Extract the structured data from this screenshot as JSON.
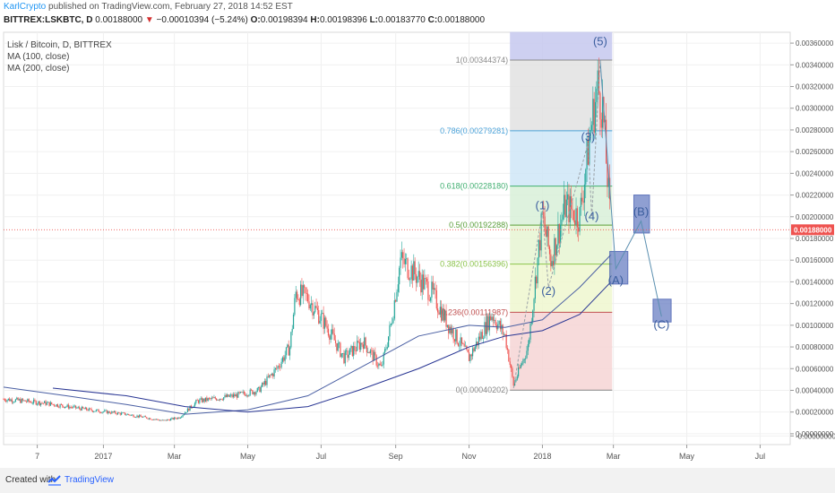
{
  "header": {
    "author": "KarlCrypto",
    "published": " published on TradingView.com, February 27, 2018 14:52 EST",
    "symbol": "BITTREX:LSKBTC, D",
    "last": "0.00188000",
    "arrow": "▼",
    "change": "−0.00010394 (−5.24%)",
    "ohlc_o_label": "O:",
    "ohlc_o": "0.00198394",
    "ohlc_h_label": "H:",
    "ohlc_h": "0.00198396",
    "ohlc_l_label": "L:",
    "ohlc_l": "0.00183770",
    "ohlc_c_label": "C:",
    "ohlc_c": "0.00188000"
  },
  "legend": {
    "title": "Lisk / Bitcoin, D, BITTREX",
    "ma1": "MA (100, close)",
    "ma2": "MA (200, close)"
  },
  "footer": {
    "created": "Created with",
    "brand": "TradingView"
  },
  "colors": {
    "up": "#26a69a",
    "down": "#ef5350",
    "ma100": "#4a5fa3",
    "ma200": "#283593",
    "wave": "#5b8fb0",
    "box_fill": "#6a7fc4",
    "price_tag": "#ef5350"
  },
  "chart_data": {
    "type": "candlestick",
    "title": "Lisk / Bitcoin, D, BITTREX",
    "y_ticks": [
      "0.00360000",
      "0.00340000",
      "0.00320000",
      "0.00300000",
      "0.00280000",
      "0.00260000",
      "0.00240000",
      "0.00220000",
      "0.00200000",
      "0.00180000",
      "0.00160000",
      "0.00140000",
      "0.00120000",
      "0.00100000",
      "0.00080000",
      "0.00060000",
      "0.00040000",
      "0.00020000",
      "0.00000000",
      "-0.00000000"
    ],
    "y_tick_values": [
      0.0036,
      0.0034,
      0.0032,
      0.003,
      0.0028,
      0.0026,
      0.0024,
      0.0022,
      0.002,
      0.0018,
      0.0016,
      0.0014,
      0.0012,
      0.001,
      0.0008,
      0.0006,
      0.0004,
      0.0002,
      0.0,
      -2e-05
    ],
    "x_ticks": [
      "7",
      "2017",
      "Mar",
      "May",
      "Jul",
      "Sep",
      "Nov",
      "2018",
      "Mar",
      "May",
      "Jul"
    ],
    "x_tick_dates": [
      "2016-11-07",
      "2017-01-01",
      "2017-03-01",
      "2017-05-01",
      "2017-07-01",
      "2017-09-01",
      "2017-11-01",
      "2018-01-01",
      "2018-03-01",
      "2018-05-01",
      "2018-07-01"
    ],
    "last_price_label": "0.00188000",
    "last_price": 0.00188,
    "ylim": [
      -0.0001,
      0.0037
    ],
    "xlim": [
      "2016-10-10",
      "2018-07-26"
    ],
    "price_path": [
      [
        "2016-10-10",
        0.00032
      ],
      [
        "2016-11-15",
        0.00028
      ],
      [
        "2016-12-20",
        0.00022
      ],
      [
        "2017-01-20",
        0.00018
      ],
      [
        "2017-02-20",
        0.00012
      ],
      [
        "2017-03-05",
        0.00015
      ],
      [
        "2017-03-20",
        0.0003
      ],
      [
        "2017-04-20",
        0.00035
      ],
      [
        "2017-05-10",
        0.0004
      ],
      [
        "2017-05-25",
        0.0006
      ],
      [
        "2017-06-05",
        0.0008
      ],
      [
        "2017-06-10",
        0.0013
      ],
      [
        "2017-06-20",
        0.00125
      ],
      [
        "2017-07-05",
        0.001
      ],
      [
        "2017-07-20",
        0.0007
      ],
      [
        "2017-08-05",
        0.00085
      ],
      [
        "2017-08-20",
        0.0006
      ],
      [
        "2017-08-28",
        0.001
      ],
      [
        "2017-09-05",
        0.0016
      ],
      [
        "2017-09-15",
        0.0015
      ],
      [
        "2017-10-01",
        0.0013
      ],
      [
        "2017-10-15",
        0.001
      ],
      [
        "2017-11-01",
        0.0007
      ],
      [
        "2017-11-20",
        0.0011
      ],
      [
        "2017-12-01",
        0.0009
      ],
      [
        "2017-12-08",
        0.00045
      ],
      [
        "2017-12-20",
        0.0008
      ],
      [
        "2018-01-01",
        0.002
      ],
      [
        "2018-01-08",
        0.0016
      ],
      [
        "2018-01-20",
        0.0021
      ],
      [
        "2018-02-01",
        0.002
      ],
      [
        "2018-02-10",
        0.0028
      ],
      [
        "2018-02-16",
        0.0032
      ],
      [
        "2018-02-20",
        0.003
      ],
      [
        "2018-02-27",
        0.00188
      ]
    ],
    "ma100": [
      [
        "2016-10-10",
        0.00043
      ],
      [
        "2016-12-01",
        0.00035
      ],
      [
        "2017-01-20",
        0.00027
      ],
      [
        "2017-03-10",
        0.00018
      ],
      [
        "2017-05-01",
        0.00022
      ],
      [
        "2017-06-20",
        0.00035
      ],
      [
        "2017-08-01",
        0.0006
      ],
      [
        "2017-09-20",
        0.0009
      ],
      [
        "2017-11-01",
        0.001
      ],
      [
        "2017-12-01",
        0.00098
      ],
      [
        "2018-01-01",
        0.00105
      ],
      [
        "2018-02-01",
        0.00135
      ],
      [
        "2018-02-27",
        0.00165
      ]
    ],
    "ma200": [
      [
        "2016-11-20",
        0.00042
      ],
      [
        "2017-01-20",
        0.00035
      ],
      [
        "2017-03-10",
        0.00025
      ],
      [
        "2017-05-01",
        0.0002
      ],
      [
        "2017-06-20",
        0.00025
      ],
      [
        "2017-08-01",
        0.0004
      ],
      [
        "2017-09-20",
        0.0006
      ],
      [
        "2017-11-01",
        0.0008
      ],
      [
        "2017-12-01",
        0.0009
      ],
      [
        "2018-01-01",
        0.00095
      ],
      [
        "2018-02-01",
        0.0011
      ],
      [
        "2018-02-27",
        0.0014
      ]
    ],
    "fib_levels": [
      {
        "label": "1(0.00344374)",
        "value": 0.00344374
      },
      {
        "label": "0.786(0.00279281)",
        "value": 0.00279281
      },
      {
        "label": "0.618(0.00228180)",
        "value": 0.0022818
      },
      {
        "label": "0.5(0.00192288)",
        "value": 0.00192288
      },
      {
        "label": "0.382(0.00156396)",
        "value": 0.00156396
      },
      {
        "label": "0.236(0.00111987)",
        "value": 0.00111987
      },
      {
        "label": "0(0.00040202)",
        "value": 0.00040202
      }
    ],
    "fib_range": [
      "2017-12-05",
      "2018-02-28"
    ],
    "elliott_waves": [
      {
        "label": "(1)",
        "date": "2018-01-01",
        "value": 0.00207
      },
      {
        "label": "(2)",
        "date": "2018-01-06",
        "value": 0.00128
      },
      {
        "label": "(3)",
        "date": "2018-02-08",
        "value": 0.0027
      },
      {
        "label": "(4)",
        "date": "2018-02-11",
        "value": 0.00197
      },
      {
        "label": "(5)",
        "date": "2018-02-18",
        "value": 0.00358
      },
      {
        "label": "(A)",
        "date": "2018-03-03",
        "value": 0.00138
      },
      {
        "label": "(B)",
        "date": "2018-03-24",
        "value": 0.00201
      },
      {
        "label": "(C)",
        "date": "2018-04-10",
        "value": 0.00097
      }
    ],
    "projection_path": [
      [
        "2018-02-18",
        0.00344
      ],
      [
        "2018-03-03",
        0.00152
      ],
      [
        "2018-03-24",
        0.00196
      ],
      [
        "2018-04-10",
        0.00108
      ]
    ],
    "projection_boxes": [
      {
        "date_from": "2018-02-26",
        "date_to": "2018-03-13",
        "top": 0.00168,
        "bottom": 0.00138
      },
      {
        "date_from": "2018-03-18",
        "date_to": "2018-03-31",
        "top": 0.0022,
        "bottom": 0.00185
      },
      {
        "date_from": "2018-04-03",
        "date_to": "2018-04-18",
        "top": 0.00124,
        "bottom": 0.00103
      }
    ]
  }
}
